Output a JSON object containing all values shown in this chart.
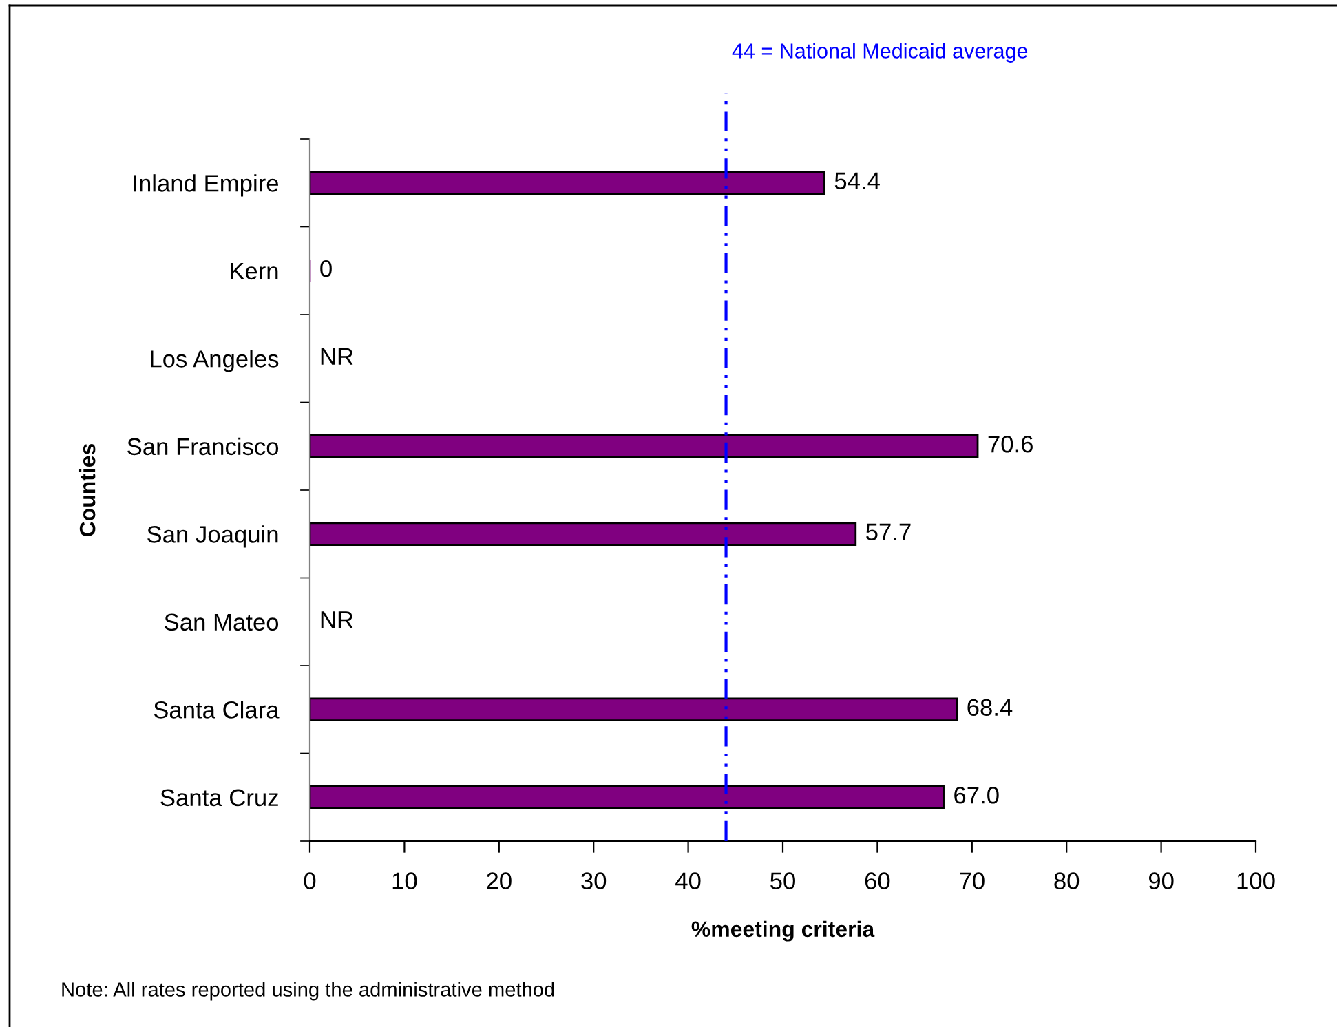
{
  "chart_data": {
    "type": "bar",
    "orientation": "horizontal",
    "xlabel": "%meeting criteria",
    "ylabel": "Counties",
    "categories": [
      "Inland Empire",
      "Kern",
      "Los Angeles",
      "San Francisco",
      "San Joaquin",
      "San Mateo",
      "Santa Clara",
      "Santa Cruz"
    ],
    "values": [
      54.4,
      0,
      null,
      70.6,
      57.7,
      null,
      68.4,
      67.0
    ],
    "value_labels": [
      "54.4",
      "0",
      "NR",
      "70.6",
      "57.7",
      "NR",
      "68.4",
      "67.0"
    ],
    "color": "#800080",
    "xlim": [
      0,
      100
    ],
    "xticks": [
      0,
      10,
      20,
      30,
      40,
      50,
      60,
      70,
      80,
      90,
      100
    ],
    "ref_lines": [
      {
        "axis": "x",
        "value": 44,
        "label": "44 = National Medicaid average",
        "color": "#0000ff",
        "line_style": "dashdot"
      }
    ],
    "annotations": [
      "Note: All rates reported using the administrative method"
    ],
    "grid": false,
    "legend": false
  }
}
